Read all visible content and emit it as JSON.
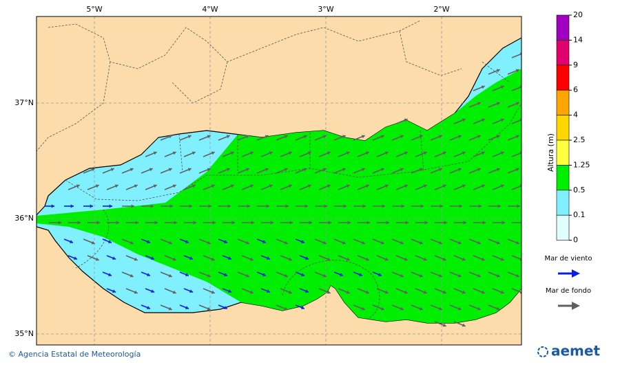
{
  "map": {
    "lon_labels": [
      "5°W",
      "4°W",
      "3°W",
      "2°W"
    ],
    "lat_labels": [
      "37°N",
      "36°N",
      "35°N"
    ],
    "land_color": "#fbdcaa"
  },
  "legend": {
    "title": "Altura (m)",
    "levels": [
      {
        "label": "20",
        "color": "#a000c0"
      },
      {
        "label": "14",
        "color": "#e0006e"
      },
      {
        "label": "9",
        "color": "#ff0000"
      },
      {
        "label": "6",
        "color": "#ffa500"
      },
      {
        "label": "4",
        "color": "#ffd700"
      },
      {
        "label": "2.5",
        "color": "#ffff40"
      },
      {
        "label": "1.25",
        "color": "#00ee00"
      },
      {
        "label": "0.5",
        "color": "#80f0ff"
      },
      {
        "label": "0.1",
        "color": "#e0ffff"
      },
      {
        "label": "0"
      }
    ]
  },
  "arrows_legend": [
    {
      "label": "Mar de viento",
      "color": "#0a1ee0"
    },
    {
      "label": "Mar de fondo",
      "color": "#606060"
    }
  ],
  "footer": {
    "agency": "© Agencia Estatal de Meteorología",
    "logo": "aemet"
  }
}
